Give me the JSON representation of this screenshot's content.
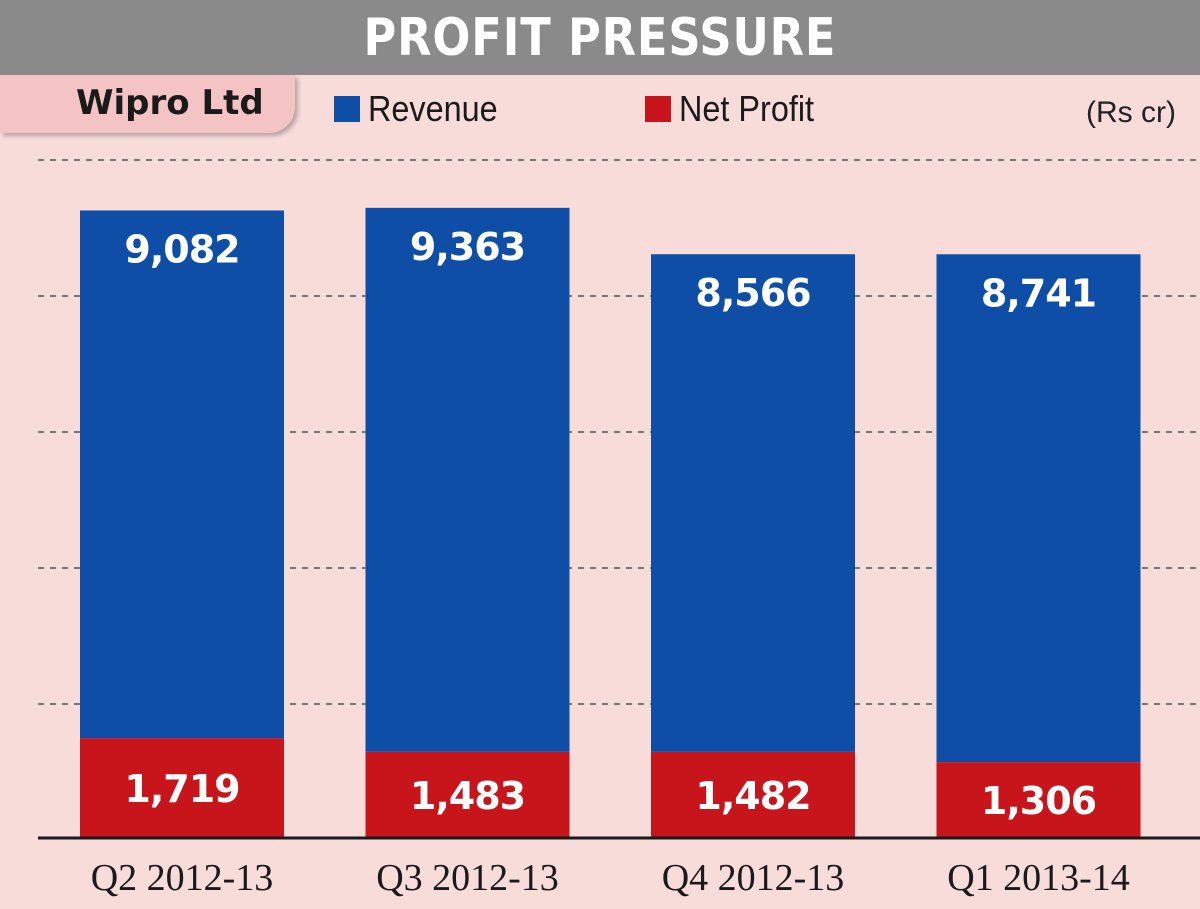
{
  "header": {
    "title": "PROFIT PRESSURE",
    "company": "Wipro Ltd",
    "unit": "(Rs cr)"
  },
  "colors": {
    "revenue": "#0f4ea6",
    "net_profit": "#c8141b",
    "title_bar": "#8a8a8a",
    "background": "#f7dcda"
  },
  "chart_data": {
    "type": "bar",
    "stacked": true,
    "categories": [
      "Q2 2012-13",
      "Q3 2012-13",
      "Q4 2012-13",
      "Q1 2013-14"
    ],
    "series": [
      {
        "name": "Net Profit",
        "values": [
          1719,
          1483,
          1482,
          1306
        ]
      },
      {
        "name": "Revenue",
        "values": [
          9082,
          9363,
          8566,
          8741
        ]
      }
    ],
    "value_labels": {
      "revenue": [
        "9,082",
        "9,363",
        "8,566",
        "8,741"
      ],
      "net_profit": [
        "1,719",
        "1,483",
        "1,482",
        "1,306"
      ]
    },
    "grid": true,
    "legend": "top",
    "unit": "Rs cr"
  }
}
